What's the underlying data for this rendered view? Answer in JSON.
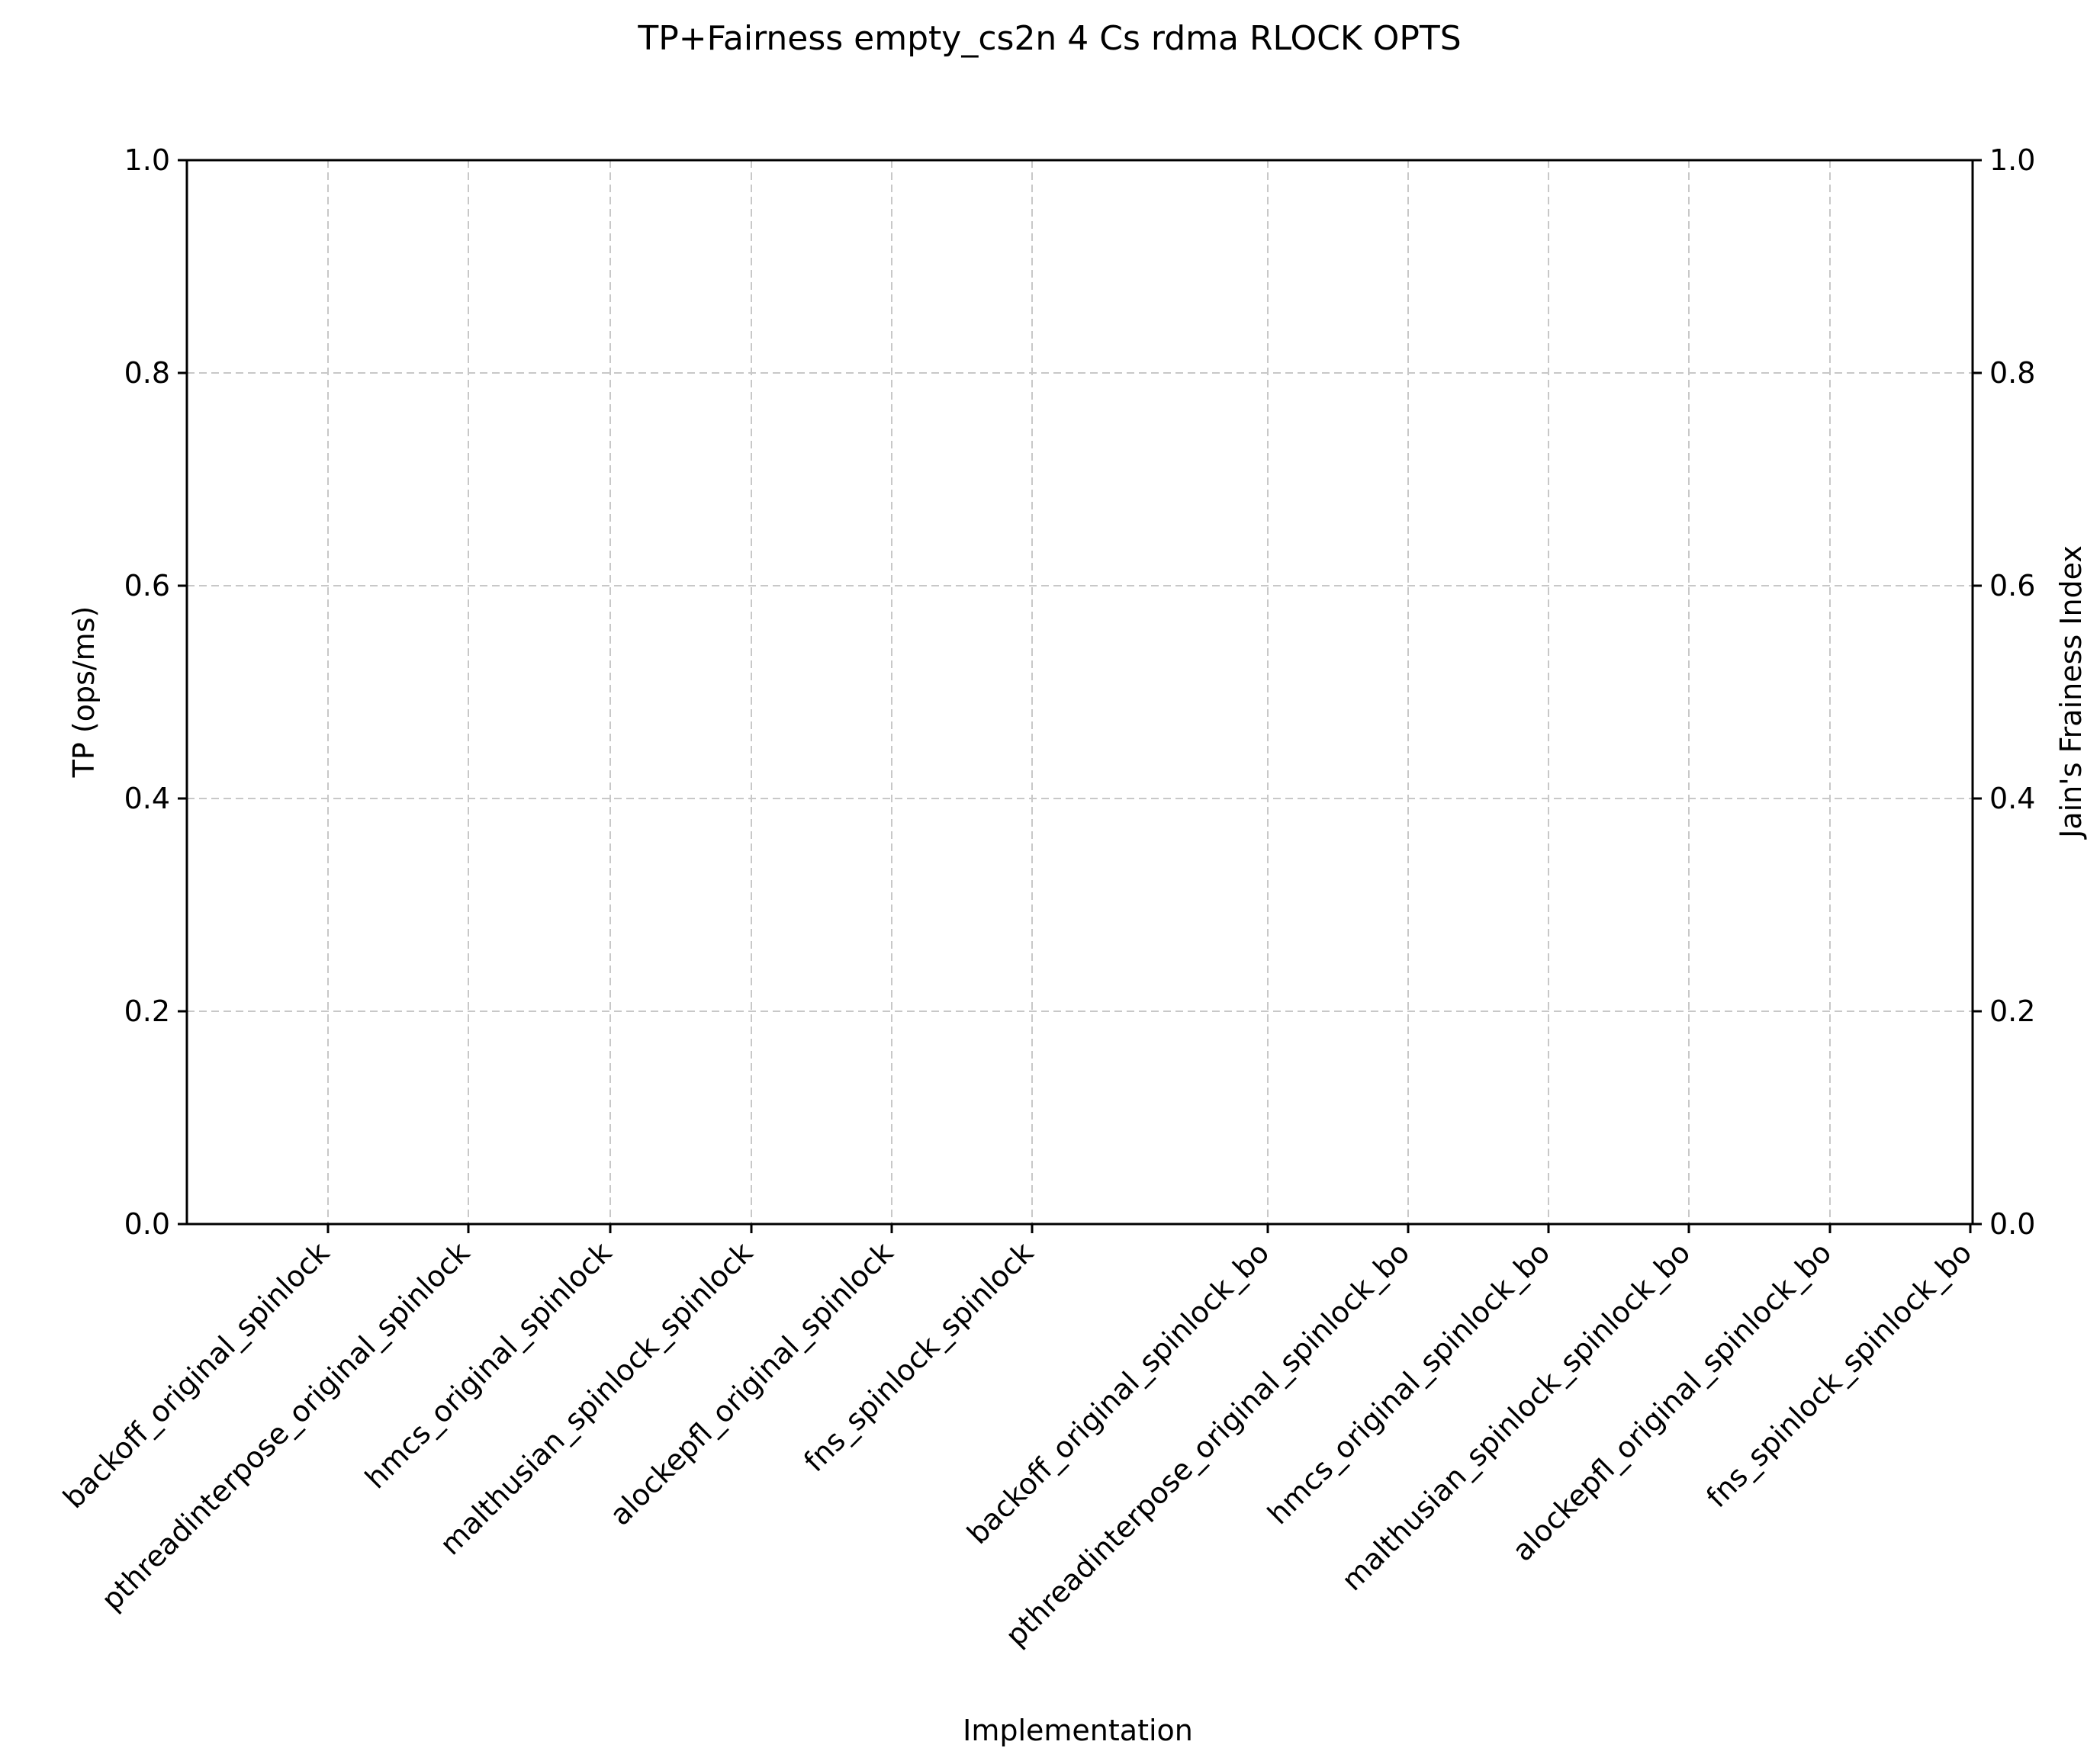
{
  "chart_data": {
    "type": "bar",
    "title": "TP+Fairness empty_cs2n 4 Cs rdma RLOCK OPTS",
    "xlabel": "Implementation",
    "ylabel": "TP (ops/ms)",
    "ylabel_right": "Jain's Frainess Index",
    "ylim": [
      0.0,
      1.0
    ],
    "ylim_right": [
      0.0,
      1.0
    ],
    "yticks": [
      "0.0",
      "0.2",
      "0.4",
      "0.6",
      "0.8",
      "1.0"
    ],
    "yticks_right": [
      "0.0",
      "0.2",
      "0.4",
      "0.6",
      "0.8",
      "1.0"
    ],
    "categories": [
      "backoff_original_spinlock",
      "pthreadinterpose_original_spinlock",
      "hmcs_original_spinlock",
      "malthusian_spinlock_spinlock",
      "alockepfl_original_spinlock",
      "fns_spinlock_spinlock",
      "backoff_original_spinlock_bo",
      "pthreadinterpose_original_spinlock_bo",
      "hmcs_original_spinlock_bo",
      "malthusian_spinlock_spinlock_bo",
      "alockepfl_original_spinlock_bo",
      "fns_spinlock_spinlock_bo"
    ],
    "series": [],
    "grid": true,
    "legend": "none",
    "colors": {
      "axis": "#000000",
      "grid": "#c8c8c8",
      "background": "#ffffff"
    }
  }
}
